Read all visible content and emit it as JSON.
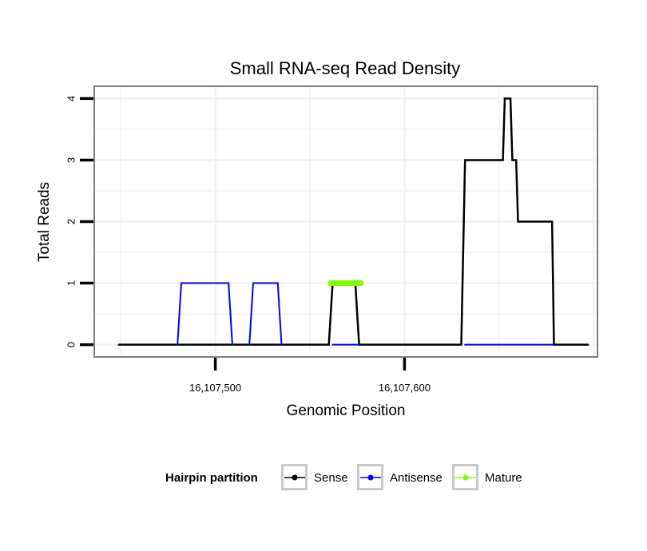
{
  "chart_data": {
    "type": "line",
    "title": "Small RNA-seq Read Density",
    "xlabel": "Genomic Position",
    "ylabel": "Total Reads",
    "xlim": [
      16107436,
      16107702
    ],
    "ylim": [
      -0.2,
      4.2
    ],
    "x_ticks": [
      16107500,
      16107600
    ],
    "x_tick_labels": [
      "16,107,500",
      "16,107,600"
    ],
    "y_ticks": [
      0,
      1,
      2,
      3,
      4
    ],
    "y_tick_labels": [
      "0",
      "1",
      "2",
      "3",
      "4"
    ],
    "grid": true,
    "legend": {
      "title": "Hairpin partition",
      "position": "bottom",
      "entries": [
        "Sense",
        "Antisense",
        "Mature"
      ]
    },
    "series": [
      {
        "name": "Sense",
        "color": "#000000",
        "x": [
          16107449,
          16107560,
          16107562,
          16107574,
          16107576,
          16107630,
          16107632,
          16107652,
          16107653,
          16107656,
          16107657,
          16107659,
          16107660,
          16107666,
          16107667,
          16107678,
          16107679,
          16107697
        ],
        "y": [
          0,
          0,
          1,
          1,
          0,
          0,
          3,
          3,
          4,
          4,
          3,
          3,
          2,
          2,
          2,
          2,
          0,
          0
        ]
      },
      {
        "name": "Antisense",
        "color": "#0000ff",
        "segments": [
          {
            "x": [
              16107480,
              16107482,
              16107507,
              16107509
            ],
            "y": [
              0,
              1,
              1,
              0
            ]
          },
          {
            "x": [
              16107518,
              16107520,
              16107533,
              16107535
            ],
            "y": [
              0,
              1,
              1,
              0
            ]
          },
          {
            "x": [
              16107562,
              16107576
            ],
            "y": [
              0,
              0
            ]
          },
          {
            "x": [
              16107632,
              16107679
            ],
            "y": [
              0,
              0
            ]
          }
        ]
      },
      {
        "name": "Mature",
        "color": "#7fff00",
        "x": [
          16107561,
          16107577
        ],
        "y": [
          1,
          1
        ]
      }
    ]
  }
}
